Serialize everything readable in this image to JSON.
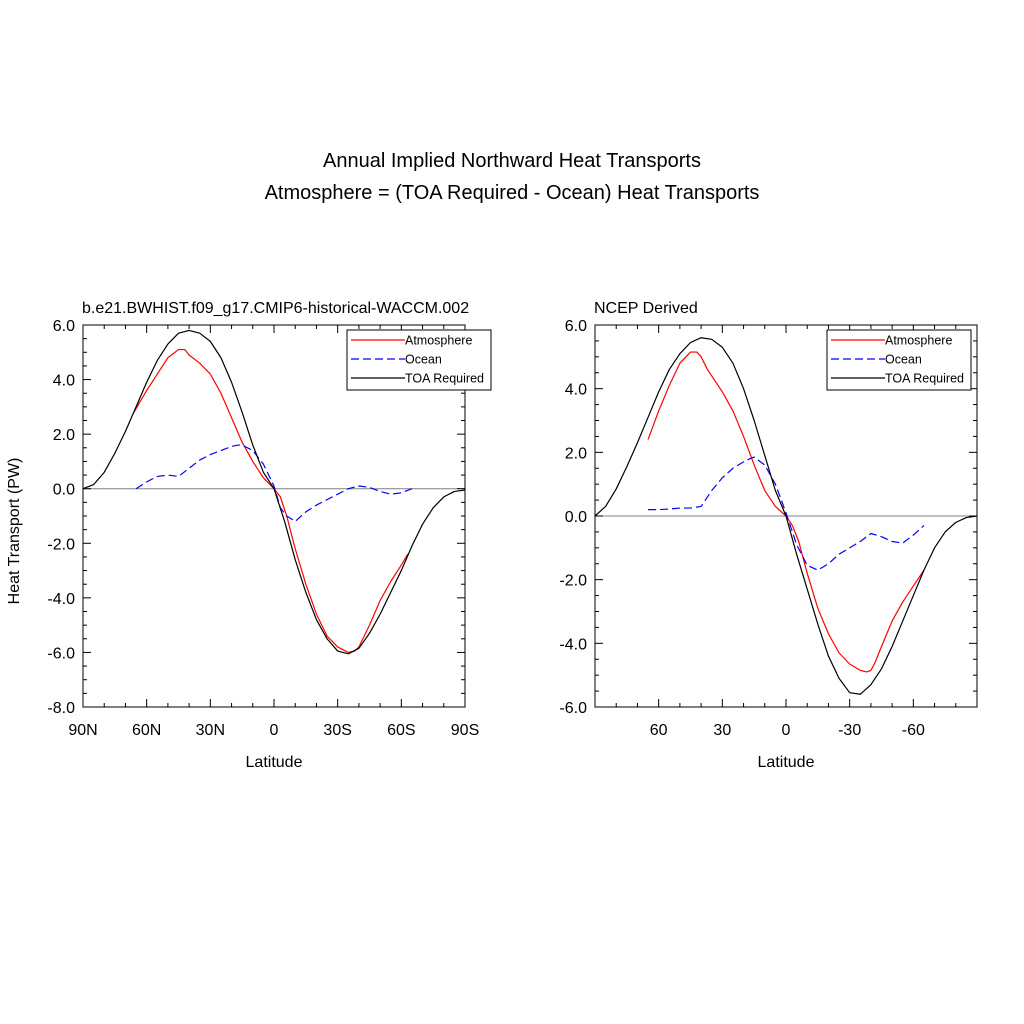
{
  "figure": {
    "title_line1": "Annual Implied Northward Heat Transports",
    "title_line2": "Atmosphere = (TOA Required - Ocean) Heat Transports"
  },
  "legend": {
    "atmosphere": "Atmosphere",
    "ocean": "Ocean",
    "toa": "TOA Required"
  },
  "colors": {
    "atmosphere": "#ff0000",
    "ocean": "#0000ff",
    "toa": "#000000",
    "zero_line": "#808080"
  },
  "chart_data": [
    {
      "type": "line",
      "title": "b.e21.BWHIST.f09_g17.CMIP6-historical-WACCM.002",
      "xlabel": "Latitude",
      "ylabel": "Heat Transport (PW)",
      "xlim": [
        90,
        -90
      ],
      "ylim": [
        -8,
        6
      ],
      "xticks": [
        90,
        60,
        30,
        0,
        -30,
        -60,
        -90
      ],
      "xtick_labels": [
        "90N",
        "60N",
        "30N",
        "0",
        "30S",
        "60S",
        "90S"
      ],
      "yticks": [
        6,
        4,
        2,
        0,
        -2,
        -4,
        -6,
        -8
      ],
      "ytick_labels": [
        "6.0",
        "4.0",
        "2.0",
        "0.0",
        "-2.0",
        "-4.0",
        "-6.0",
        "-8.0"
      ],
      "legend_position": "top-right",
      "series": [
        {
          "name": "Atmosphere",
          "style": "solid",
          "x": [
            66,
            60,
            55,
            50,
            45,
            42,
            40,
            35,
            30,
            25,
            20,
            15,
            10,
            5,
            0,
            -3,
            -6,
            -10,
            -15,
            -20,
            -25,
            -30,
            -35,
            -38,
            -40,
            -45,
            -50,
            -55,
            -60,
            -63
          ],
          "y": [
            2.8,
            3.6,
            4.2,
            4.8,
            5.1,
            5.1,
            4.9,
            4.6,
            4.2,
            3.5,
            2.6,
            1.7,
            1.0,
            0.4,
            0.0,
            -0.3,
            -1.0,
            -2.2,
            -3.5,
            -4.6,
            -5.4,
            -5.8,
            -6.0,
            -5.95,
            -5.8,
            -5.0,
            -4.1,
            -3.4,
            -2.8,
            -2.4
          ]
        },
        {
          "name": "Ocean",
          "style": "dashed",
          "x": [
            65,
            60,
            55,
            50,
            45,
            40,
            35,
            30,
            25,
            20,
            17,
            15,
            10,
            5,
            0,
            -3,
            -6,
            -10,
            -15,
            -20,
            -25,
            -30,
            -35,
            -40,
            -45,
            -50,
            -55,
            -60,
            -65
          ],
          "y": [
            0.0,
            0.25,
            0.45,
            0.5,
            0.45,
            0.75,
            1.05,
            1.25,
            1.4,
            1.55,
            1.6,
            1.6,
            1.4,
            0.9,
            0.1,
            -0.7,
            -1.0,
            -1.2,
            -0.85,
            -0.6,
            -0.4,
            -0.2,
            0.0,
            0.1,
            0.05,
            -0.1,
            -0.2,
            -0.15,
            0.0
          ]
        },
        {
          "name": "TOA Required",
          "style": "solid",
          "x": [
            90,
            85,
            80,
            75,
            70,
            65,
            60,
            55,
            50,
            45,
            40,
            35,
            30,
            25,
            20,
            15,
            10,
            5,
            0,
            -5,
            -10,
            -15,
            -20,
            -25,
            -30,
            -35,
            -40,
            -45,
            -50,
            -55,
            -60,
            -65,
            -70,
            -75,
            -80,
            -85,
            -90
          ],
          "y": [
            0.0,
            0.15,
            0.6,
            1.3,
            2.1,
            3.0,
            3.9,
            4.7,
            5.3,
            5.7,
            5.8,
            5.7,
            5.4,
            4.8,
            3.9,
            2.8,
            1.6,
            0.6,
            0.0,
            -1.2,
            -2.6,
            -3.8,
            -4.8,
            -5.5,
            -5.95,
            -6.05,
            -5.85,
            -5.3,
            -4.6,
            -3.8,
            -3.0,
            -2.1,
            -1.3,
            -0.7,
            -0.3,
            -0.1,
            -0.05
          ]
        }
      ]
    },
    {
      "type": "line",
      "title": "NCEP Derived",
      "xlabel": "Latitude",
      "ylabel": "",
      "xlim": [
        90,
        -90
      ],
      "ylim": [
        -6,
        6
      ],
      "xticks": [
        60,
        30,
        0,
        -30,
        -60
      ],
      "xtick_labels": [
        "60",
        "30",
        "0",
        "-30",
        "-60"
      ],
      "yticks": [
        6,
        4,
        2,
        0,
        -2,
        -4,
        -6
      ],
      "ytick_labels": [
        "6.0",
        "4.0",
        "2.0",
        "0.0",
        "-2.0",
        "-4.0",
        "-6.0"
      ],
      "legend_position": "top-right",
      "series": [
        {
          "name": "Atmosphere",
          "style": "solid",
          "x": [
            65,
            60,
            55,
            50,
            45,
            42,
            40,
            37,
            35,
            30,
            25,
            20,
            15,
            10,
            5,
            0,
            -3,
            -6,
            -10,
            -15,
            -20,
            -25,
            -30,
            -35,
            -38,
            -40,
            -42,
            -45,
            -50,
            -55,
            -60,
            -65
          ],
          "y": [
            2.4,
            3.3,
            4.1,
            4.8,
            5.15,
            5.15,
            5.0,
            4.6,
            4.4,
            3.9,
            3.3,
            2.5,
            1.6,
            0.8,
            0.3,
            0.0,
            -0.3,
            -0.8,
            -1.8,
            -2.9,
            -3.7,
            -4.3,
            -4.65,
            -4.85,
            -4.9,
            -4.85,
            -4.6,
            -4.1,
            -3.3,
            -2.7,
            -2.2,
            -1.7
          ]
        },
        {
          "name": "Ocean",
          "style": "dashed",
          "x": [
            65,
            60,
            55,
            50,
            45,
            40,
            35,
            30,
            25,
            20,
            17,
            15,
            10,
            5,
            0,
            -5,
            -10,
            -15,
            -20,
            -25,
            -30,
            -35,
            -40,
            -45,
            -50,
            -55,
            -60,
            -65
          ],
          "y": [
            0.2,
            0.2,
            0.22,
            0.25,
            0.25,
            0.3,
            0.8,
            1.2,
            1.5,
            1.7,
            1.8,
            1.85,
            1.6,
            1.0,
            0.1,
            -0.9,
            -1.55,
            -1.7,
            -1.5,
            -1.2,
            -1.0,
            -0.8,
            -0.55,
            -0.65,
            -0.8,
            -0.85,
            -0.6,
            -0.3
          ]
        },
        {
          "name": "TOA Required",
          "style": "solid",
          "x": [
            90,
            85,
            80,
            75,
            70,
            65,
            60,
            55,
            50,
            45,
            40,
            35,
            30,
            25,
            20,
            15,
            10,
            5,
            0,
            -5,
            -10,
            -15,
            -20,
            -25,
            -30,
            -35,
            -40,
            -45,
            -50,
            -55,
            -60,
            -65,
            -70,
            -75,
            -80,
            -85,
            -90
          ],
          "y": [
            0.0,
            0.3,
            0.85,
            1.55,
            2.3,
            3.1,
            3.9,
            4.6,
            5.1,
            5.45,
            5.6,
            5.55,
            5.3,
            4.8,
            4.0,
            3.0,
            1.9,
            0.8,
            0.0,
            -1.2,
            -2.3,
            -3.4,
            -4.4,
            -5.1,
            -5.55,
            -5.6,
            -5.3,
            -4.8,
            -4.1,
            -3.3,
            -2.5,
            -1.7,
            -1.0,
            -0.5,
            -0.2,
            -0.05,
            0.0
          ]
        }
      ]
    }
  ]
}
